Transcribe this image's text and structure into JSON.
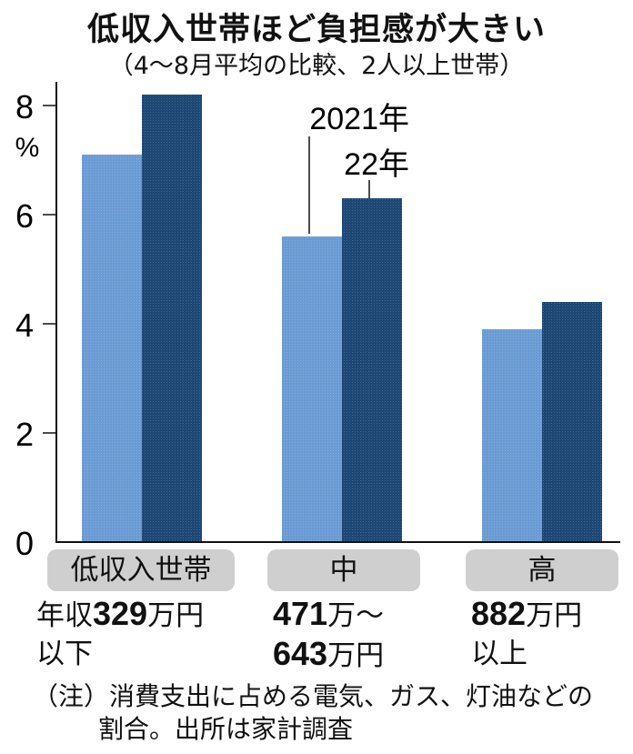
{
  "chart_data": {
    "type": "bar",
    "title": "低収入世帯ほど負担感が大きい",
    "subtitle": "（4～8月平均の比較、2人以上世帯）",
    "ylabel": "%",
    "ylim": [
      0,
      8
    ],
    "yticks": [
      "0",
      "2",
      "4",
      "6",
      "8"
    ],
    "grid": false,
    "categories": [
      "低収入世帯",
      "中",
      "高"
    ],
    "category_details": [
      {
        "pre": "年収",
        "bold1": "329",
        "post1": "万円",
        "line2": "以下",
        "bold2": "",
        "post2": ""
      },
      {
        "pre": "",
        "bold1": "471",
        "post1": "万～",
        "line2": "",
        "bold2": "643",
        "post2": "万円"
      },
      {
        "pre": "",
        "bold1": "882",
        "post1": "万円",
        "line2": "以上",
        "bold2": "",
        "post2": ""
      }
    ],
    "series": [
      {
        "name": "2021年",
        "values": [
          7.1,
          5.6,
          3.9
        ],
        "color": "#6b9bd3"
      },
      {
        "name": "22年",
        "values": [
          8.2,
          6.3,
          4.4
        ],
        "color": "#1d4775"
      }
    ],
    "legend": "inline-annotation",
    "note_line1": "（注）消費支出に占める電気、ガス、灯油などの",
    "note_line2": "割合。出所は家計調査"
  }
}
